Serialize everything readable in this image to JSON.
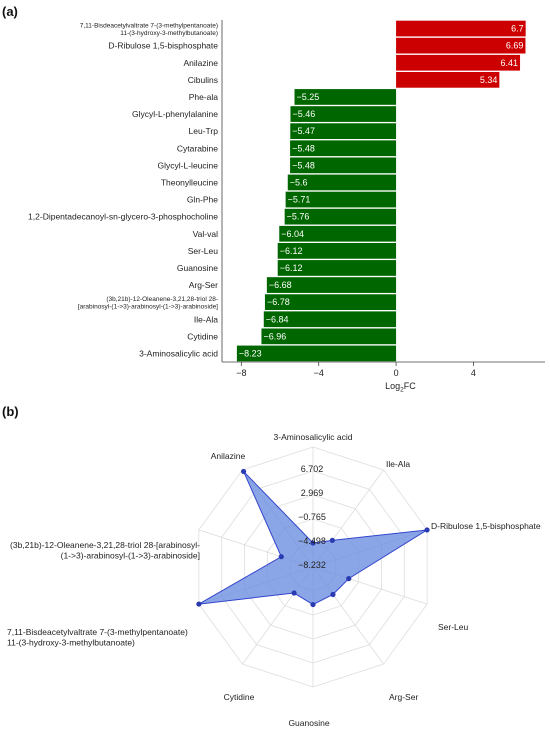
{
  "chart_data": [
    {
      "type": "bar",
      "orientation": "horizontal",
      "panel_label": "(a)",
      "title": "",
      "xlabel": "Log",
      "xlabel_sub": "2",
      "xlabel_suffix": "FC",
      "ylabel": "",
      "xlim": [
        -9,
        7.7
      ],
      "xticks": [
        -8,
        -4,
        0,
        4
      ],
      "xtick_labels": [
        "−8",
        "−4",
        "0",
        "4"
      ],
      "colors": {
        "positive": "#cc0000",
        "negative": "#006600"
      },
      "categories": [
        [
          "7,11-Bisdeacetylvaltrate 7-(3-methylpentanoate)",
          "11-(3-hydroxy-3-methylbutanoate)"
        ],
        [
          "D-Ribulose 1,5-bisphosphate"
        ],
        [
          "Anilazine"
        ],
        [
          "Cibulins"
        ],
        [
          "Phe-ala"
        ],
        [
          "Glycyl-L-phenylalanine"
        ],
        [
          "Leu-Trp"
        ],
        [
          "Cytarabine"
        ],
        [
          "Glycyl-L-leucine"
        ],
        [
          "Theonylleucine"
        ],
        [
          "Gln-Phe"
        ],
        [
          "1,2-Dipentadecanoyl-sn-glycero-3-phosphocholine"
        ],
        [
          "Val-val"
        ],
        [
          "Ser-Leu"
        ],
        [
          "Guanosine"
        ],
        [
          "Arg-Ser"
        ],
        [
          "(3b,21b)-12-Oleanene-3,21,28-triol 28-",
          "[arabinosyl-(1->3)-arabinosyl-(1->3)-arabinoside]"
        ],
        [
          "Ile-Ala"
        ],
        [
          "Cytidine"
        ],
        [
          "3-Aminosalicylic acid"
        ]
      ],
      "values": [
        6.7,
        6.69,
        6.41,
        5.34,
        -5.25,
        -5.46,
        -5.47,
        -5.48,
        -5.48,
        -5.6,
        -5.71,
        -5.76,
        -6.04,
        -6.12,
        -6.12,
        -6.68,
        -6.78,
        -6.84,
        -6.96,
        -8.23
      ],
      "value_labels": [
        "6.7",
        "6.69",
        "6.41",
        "5.34",
        "−5.25",
        "−5.46",
        "−5.47",
        "−5.48",
        "−5.48",
        "−5.6",
        "−5.71",
        "−5.76",
        "−6.04",
        "−6.12",
        "−6.12",
        "−6.68",
        "−6.78",
        "−6.84",
        "−6.96",
        "−8.23"
      ]
    },
    {
      "type": "radar",
      "panel_label": "(b)",
      "title": "",
      "range": [
        -8.232,
        6.702
      ],
      "ring_labels": [
        "6.702",
        "2.969",
        "−0.765",
        "−4.498",
        "−8.232"
      ],
      "colors": {
        "fill": "#6a8de0",
        "line": "#3344cc",
        "marker": "#2a3ab0",
        "grid": "#dddddd"
      },
      "axes": [
        {
          "label": [
            "3-Aminosalicylic acid"
          ],
          "value": -8.23
        },
        {
          "label": [
            "Ile-Ala"
          ],
          "value": -6.84
        },
        {
          "label": [
            "D-Ribulose 1,5-bisphosphate"
          ],
          "value": 6.69
        },
        {
          "label": [
            "Ser-Leu"
          ],
          "value": -6.12
        },
        {
          "label": [
            "Arg-Ser"
          ],
          "value": -6.68
        },
        {
          "label": [
            "Guanosine"
          ],
          "value": -6.12
        },
        {
          "label": [
            "Cytidine"
          ],
          "value": -6.96
        },
        {
          "label": [
            "7,11-Bisdeacetylvaltrate 7-(3-methylpentanoate)",
            "11-(3-hydroxy-3-methylbutanoate)"
          ],
          "value": 6.7
        },
        {
          "label": [
            "(3b,21b)-12-Oleanene-3,21,28-triol 28-[arabinosyl-",
            "(1->3)-arabinosyl-(1->3)-arabinoside]"
          ],
          "value": -6.78
        },
        {
          "label": [
            "Anilazine"
          ],
          "value": 6.41
        }
      ]
    }
  ]
}
